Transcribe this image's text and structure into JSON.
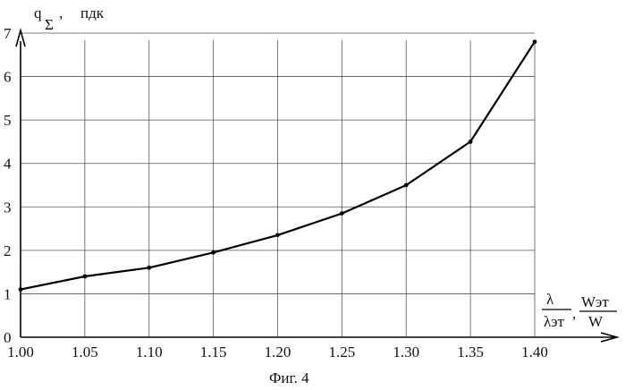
{
  "chart_data": {
    "type": "line",
    "x": [
      1.0,
      1.05,
      1.1,
      1.15,
      1.2,
      1.25,
      1.3,
      1.35,
      1.4
    ],
    "y": [
      1.1,
      1.4,
      1.6,
      1.95,
      2.35,
      2.85,
      3.5,
      4.5,
      6.8
    ],
    "x_ticks": [
      "1.00",
      "1.05",
      "1.10",
      "1.15",
      "1.20",
      "1.25",
      "1.30",
      "1.35",
      "1.40"
    ],
    "y_ticks": [
      "0",
      "1",
      "2",
      "3",
      "4",
      "5",
      "6",
      "7"
    ],
    "xlim": [
      1.0,
      1.4
    ],
    "ylim": [
      0,
      7
    ],
    "grid": true,
    "ylabel": {
      "symbol": "q",
      "subscript": "Σ",
      "unit": "пдк"
    },
    "xlabel": {
      "lambda_num": "λ",
      "lambda_den": "λэт",
      "w_num": "Wэт",
      "w_den": "W"
    },
    "caption": "Фиг. 4"
  }
}
